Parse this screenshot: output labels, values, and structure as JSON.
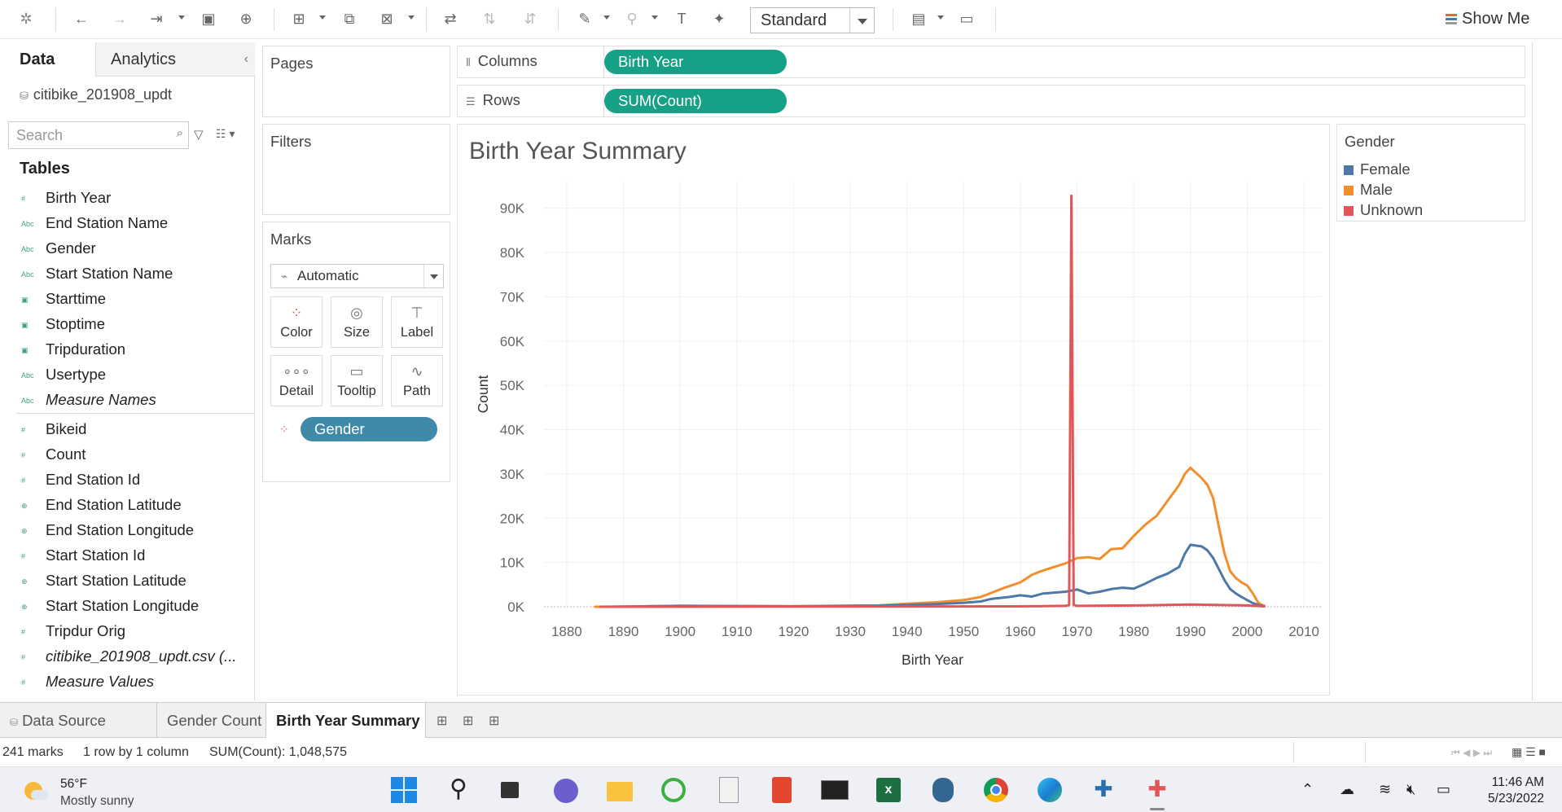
{
  "toolbar": {
    "format_select": "Standard",
    "show_me_label": "Show Me"
  },
  "data_pane": {
    "tab_data": "Data",
    "tab_analytics": "Analytics",
    "collapse_icon": "chevron-left-icon",
    "datasource": "citibike_201908_updt",
    "search_placeholder": "Search",
    "tables_heading": "Tables",
    "dimensions": [
      {
        "type": "#",
        "label": "Birth Year"
      },
      {
        "type": "Abc",
        "label": "End Station Name"
      },
      {
        "type": "Abc",
        "label": "Gender"
      },
      {
        "type": "Abc",
        "label": "Start Station Name"
      },
      {
        "type": "date",
        "label": "Starttime"
      },
      {
        "type": "date",
        "label": "Stoptime"
      },
      {
        "type": "date",
        "label": "Tripduration"
      },
      {
        "type": "Abc",
        "label": "Usertype"
      },
      {
        "type": "Abc",
        "label": "Measure Names"
      }
    ],
    "measures": [
      {
        "type": "#",
        "label": "Bikeid"
      },
      {
        "type": "#",
        "label": "Count"
      },
      {
        "type": "#",
        "label": "End Station Id"
      },
      {
        "type": "geo",
        "label": "End Station Latitude"
      },
      {
        "type": "geo",
        "label": "End Station Longitude"
      },
      {
        "type": "#",
        "label": "Start Station Id"
      },
      {
        "type": "geo",
        "label": "Start Station Latitude"
      },
      {
        "type": "geo",
        "label": "Start Station Longitude"
      },
      {
        "type": "#",
        "label": "Tripdur Orig"
      },
      {
        "type": "#",
        "label": "citibike_201908_updt.csv (..."
      },
      {
        "type": "#",
        "label": "Measure Values"
      }
    ]
  },
  "cards": {
    "pages": "Pages",
    "filters": "Filters",
    "marks": "Marks",
    "marks_type": "Automatic",
    "mark_buttons": [
      "Color",
      "Size",
      "Label",
      "Detail",
      "Tooltip",
      "Path"
    ],
    "color_pill": "Gender"
  },
  "shelves": {
    "columns_label": "Columns",
    "columns_pill": "Birth Year",
    "rows_label": "Rows",
    "rows_pill": "SUM(Count)"
  },
  "viz": {
    "title": "Birth Year Summary"
  },
  "legend": {
    "title": "Gender",
    "items": [
      {
        "label": "Female",
        "color": "#4e79a7"
      },
      {
        "label": "Male",
        "color": "#f28e2b"
      },
      {
        "label": "Unknown",
        "color": "#e15759"
      }
    ]
  },
  "sheet_tabs": {
    "data_source": "Data Source",
    "tabs": [
      "Gender Count",
      "Birth Year Summary"
    ]
  },
  "status": {
    "marks": "241 marks",
    "dims": "1 row by 1 column",
    "sum": "SUM(Count): 1,048,575"
  },
  "taskbar": {
    "temperature": "56°F",
    "weather": "Mostly sunny",
    "time": "11:46 AM",
    "date": "5/23/2022"
  },
  "chart_data": {
    "type": "line",
    "title": "Birth Year Summary",
    "xlabel": "Birth Year",
    "ylabel": "Count",
    "xlim": [
      1876,
      2013
    ],
    "ylim": [
      0,
      96000
    ],
    "x_ticks": [
      1880,
      1890,
      1900,
      1910,
      1920,
      1930,
      1940,
      1950,
      1960,
      1970,
      1980,
      1990,
      2000,
      2010
    ],
    "y_ticks": [
      0,
      10000,
      20000,
      30000,
      40000,
      50000,
      60000,
      70000,
      80000,
      90000
    ],
    "y_tick_labels": [
      "0K",
      "10K",
      "20K",
      "30K",
      "40K",
      "50K",
      "60K",
      "70K",
      "80K",
      "90K"
    ],
    "legend_position": "right",
    "series": [
      {
        "name": "Female",
        "color": "#4e79a7",
        "points": [
          [
            1886,
            0
          ],
          [
            1900,
            200
          ],
          [
            1920,
            100
          ],
          [
            1935,
            250
          ],
          [
            1940,
            400
          ],
          [
            1945,
            600
          ],
          [
            1950,
            900
          ],
          [
            1953,
            1200
          ],
          [
            1955,
            1800
          ],
          [
            1958,
            2200
          ],
          [
            1960,
            2600
          ],
          [
            1962,
            2300
          ],
          [
            1964,
            3000
          ],
          [
            1966,
            3200
          ],
          [
            1968,
            3400
          ],
          [
            1970,
            3900
          ],
          [
            1972,
            3000
          ],
          [
            1974,
            3400
          ],
          [
            1976,
            4000
          ],
          [
            1978,
            4300
          ],
          [
            1980,
            4100
          ],
          [
            1982,
            5200
          ],
          [
            1984,
            6500
          ],
          [
            1986,
            7500
          ],
          [
            1988,
            9000
          ],
          [
            1989,
            12000
          ],
          [
            1990,
            14000
          ],
          [
            1992,
            13600
          ],
          [
            1993,
            12700
          ],
          [
            1994,
            11000
          ],
          [
            1995,
            8500
          ],
          [
            1996,
            6000
          ],
          [
            1997,
            4000
          ],
          [
            1998,
            3000
          ],
          [
            1999,
            2200
          ],
          [
            2000,
            1500
          ],
          [
            2001,
            800
          ],
          [
            2002,
            400
          ],
          [
            2003,
            100
          ]
        ]
      },
      {
        "name": "Male",
        "color": "#f28e2b",
        "points": [
          [
            1885,
            0
          ],
          [
            1888,
            0
          ],
          [
            1900,
            200
          ],
          [
            1920,
            150
          ],
          [
            1935,
            300
          ],
          [
            1940,
            700
          ],
          [
            1945,
            1000
          ],
          [
            1950,
            1500
          ],
          [
            1953,
            2200
          ],
          [
            1955,
            3200
          ],
          [
            1957,
            4200
          ],
          [
            1960,
            5500
          ],
          [
            1962,
            7200
          ],
          [
            1964,
            8200
          ],
          [
            1966,
            9000
          ],
          [
            1968,
            9800
          ],
          [
            1970,
            11000
          ],
          [
            1972,
            11200
          ],
          [
            1974,
            10800
          ],
          [
            1976,
            13000
          ],
          [
            1978,
            13200
          ],
          [
            1980,
            16000
          ],
          [
            1982,
            18500
          ],
          [
            1984,
            20500
          ],
          [
            1986,
            24000
          ],
          [
            1988,
            27500
          ],
          [
            1989,
            30000
          ],
          [
            1990,
            31400
          ],
          [
            1991,
            30200
          ],
          [
            1992,
            29000
          ],
          [
            1993,
            27500
          ],
          [
            1994,
            24500
          ],
          [
            1995,
            18000
          ],
          [
            1996,
            12000
          ],
          [
            1997,
            8000
          ],
          [
            1998,
            6500
          ],
          [
            1999,
            5500
          ],
          [
            2000,
            4800
          ],
          [
            2001,
            3000
          ],
          [
            2002,
            800
          ],
          [
            2003,
            200
          ]
        ]
      },
      {
        "name": "Unknown",
        "color": "#e15759",
        "points": [
          [
            1886,
            0
          ],
          [
            1960,
            100
          ],
          [
            1968,
            200
          ],
          [
            1968.6,
            400
          ],
          [
            1969,
            92800
          ],
          [
            1969.4,
            400
          ],
          [
            1970,
            200
          ],
          [
            1980,
            300
          ],
          [
            1990,
            500
          ],
          [
            2000,
            300
          ],
          [
            2003,
            100
          ]
        ]
      }
    ]
  }
}
